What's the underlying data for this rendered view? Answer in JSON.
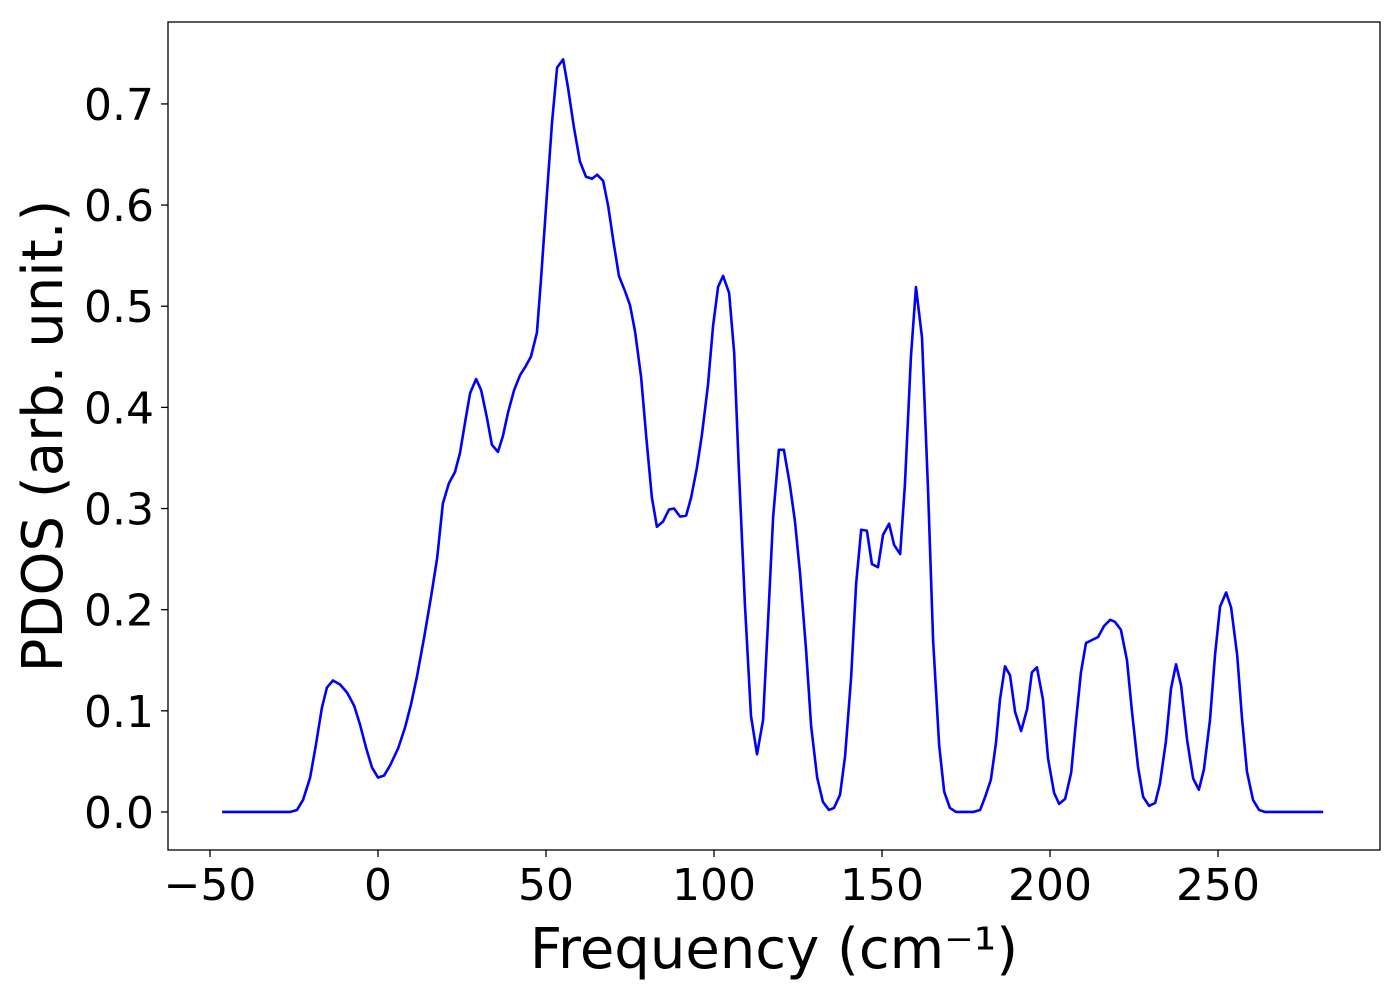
{
  "chart_data": {
    "type": "line",
    "xlabel": "Frequency (cm⁻¹)",
    "ylabel": "PDOS (arb. unit.)",
    "xlim": [
      -62.5,
      298.2
    ],
    "ylim": [
      -0.0376,
      0.781
    ],
    "xticks": [
      {
        "value": -50,
        "label": "−50"
      },
      0,
      50,
      100,
      150,
      200,
      250
    ],
    "yticks": [
      {
        "value": 0,
        "label": "0.0"
      },
      0.1,
      0.2,
      0.3,
      0.4,
      0.5,
      0.6,
      0.7
    ],
    "grid": false,
    "series": [
      {
        "color": "#0000ff",
        "x": [
          -46.4,
          -26.2,
          -24.1,
          -22.3,
          -20.2,
          -18.5,
          -16.7,
          -15.2,
          -13.4,
          -11.3,
          -9.2,
          -7.1,
          -5.4,
          -3.6,
          -1.8,
          0,
          1.8,
          3.6,
          6.0,
          8.0,
          9.8,
          11.6,
          13.7,
          15.8,
          17.6,
          19.3,
          21.1,
          22.9,
          24.4,
          25.9,
          27.4,
          29.2,
          30.7,
          32.4,
          33.9,
          35.7,
          37.2,
          38.7,
          40.5,
          42.3,
          44.0,
          45.5,
          47.3,
          48.5,
          50.3,
          51.8,
          53.3,
          55.1,
          56.5,
          58.3,
          60.1,
          61.9,
          63.7,
          65.2,
          67.0,
          68.5,
          70.2,
          71.7,
          73.5,
          75.0,
          76.5,
          78.3,
          79.8,
          81.5,
          83.0,
          84.8,
          86.6,
          88.1,
          89.9,
          91.7,
          93.2,
          94.9,
          96.4,
          98.2,
          99.7,
          101.2,
          102.7,
          104.5,
          106.0,
          107.4,
          109.2,
          111.0,
          112.8,
          114.6,
          116.1,
          117.6,
          119.3,
          120.8,
          122.6,
          124.1,
          125.6,
          127.4,
          128.9,
          130.7,
          132.4,
          134.2,
          135.7,
          137.5,
          139.0,
          140.8,
          142.3,
          143.8,
          145.5,
          147.0,
          148.8,
          150.3,
          152.1,
          153.6,
          155.4,
          156.8,
          158.6,
          160.1,
          161.9,
          163.7,
          165.2,
          167.0,
          168.5,
          170.2,
          172.0,
          177.1,
          179.2,
          180.7,
          182.4,
          183.9,
          185.1,
          186.6,
          188.1,
          189.6,
          191.4,
          193.2,
          194.6,
          196.1,
          197.9,
          199.4,
          201.2,
          202.7,
          204.5,
          206.3,
          207.7,
          209.2,
          210.7,
          212.5,
          214.3,
          216.1,
          217.9,
          219.3,
          221.1,
          222.9,
          224.4,
          226.2,
          227.7,
          229.5,
          231.3,
          232.7,
          234.5,
          236.0,
          237.5,
          239.0,
          240.8,
          242.6,
          244.3,
          245.8,
          247.6,
          249.1,
          250.6,
          252.4,
          253.9,
          255.7,
          257.1,
          258.6,
          260.4,
          262.2,
          264.0,
          281.3
        ],
        "values": [
          0,
          0,
          0.002,
          0.012,
          0.034,
          0.066,
          0.103,
          0.123,
          0.13,
          0.126,
          0.118,
          0.105,
          0.087,
          0.064,
          0.044,
          0.034,
          0.036,
          0.046,
          0.063,
          0.083,
          0.106,
          0.134,
          0.172,
          0.213,
          0.251,
          0.305,
          0.325,
          0.336,
          0.355,
          0.385,
          0.414,
          0.428,
          0.417,
          0.39,
          0.363,
          0.356,
          0.372,
          0.395,
          0.417,
          0.432,
          0.441,
          0.45,
          0.474,
          0.526,
          0.612,
          0.682,
          0.736,
          0.744,
          0.717,
          0.677,
          0.643,
          0.628,
          0.626,
          0.63,
          0.624,
          0.599,
          0.561,
          0.53,
          0.515,
          0.501,
          0.475,
          0.43,
          0.372,
          0.311,
          0.282,
          0.287,
          0.299,
          0.3,
          0.292,
          0.293,
          0.311,
          0.34,
          0.373,
          0.422,
          0.48,
          0.519,
          0.53,
          0.513,
          0.454,
          0.338,
          0.205,
          0.095,
          0.057,
          0.091,
          0.19,
          0.292,
          0.358,
          0.358,
          0.323,
          0.287,
          0.236,
          0.16,
          0.085,
          0.034,
          0.01,
          0.002,
          0.004,
          0.017,
          0.055,
          0.133,
          0.226,
          0.279,
          0.278,
          0.245,
          0.242,
          0.274,
          0.285,
          0.264,
          0.255,
          0.323,
          0.45,
          0.519,
          0.469,
          0.318,
          0.17,
          0.066,
          0.02,
          0.004,
          0,
          0,
          0.002,
          0.015,
          0.032,
          0.068,
          0.111,
          0.144,
          0.135,
          0.099,
          0.08,
          0.102,
          0.138,
          0.143,
          0.111,
          0.053,
          0.019,
          0.008,
          0.013,
          0.039,
          0.089,
          0.138,
          0.167,
          0.17,
          0.173,
          0.184,
          0.19,
          0.188,
          0.18,
          0.15,
          0.099,
          0.044,
          0.015,
          0.006,
          0.009,
          0.028,
          0.07,
          0.122,
          0.146,
          0.125,
          0.071,
          0.033,
          0.022,
          0.042,
          0.091,
          0.155,
          0.203,
          0.217,
          0.202,
          0.155,
          0.094,
          0.04,
          0.012,
          0.002,
          0,
          0
        ]
      }
    ]
  }
}
